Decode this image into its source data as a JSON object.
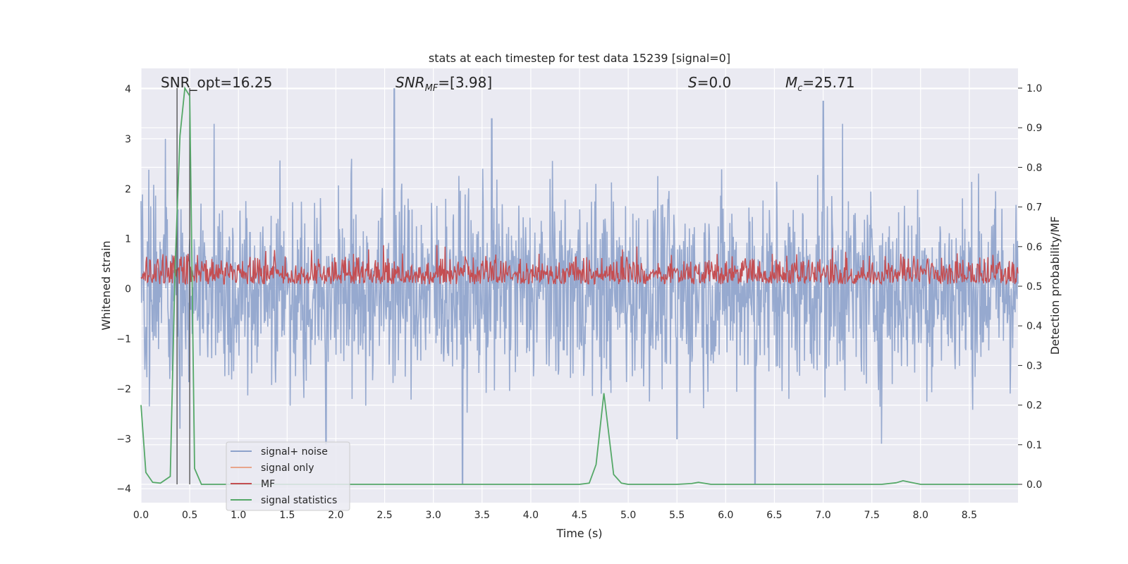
{
  "chart_data": {
    "type": "line",
    "title": "stats at each timestep for test data 15239 [signal=0]",
    "xlabel": "Time (s)",
    "ylabel_left": "Whitened strain",
    "ylabel_right": "Detection probability/MF",
    "xlim": [
      0.0,
      9.0
    ],
    "ylim_left": [
      -4.3,
      4.35
    ],
    "ylim_right": [
      -0.05,
      1.05
    ],
    "xticks": [
      "0.0",
      "0.5",
      "1.0",
      "1.5",
      "2.0",
      "2.5",
      "3.0",
      "3.5",
      "4.0",
      "4.5",
      "5.0",
      "5.5",
      "6.0",
      "6.5",
      "7.0",
      "7.5",
      "8.0",
      "8.5"
    ],
    "yticks_left": [
      "−4",
      "−3",
      "−2",
      "−1",
      "0",
      "1",
      "2",
      "3",
      "4"
    ],
    "yticks_right": [
      "0.0",
      "0.1",
      "0.2",
      "0.3",
      "0.4",
      "0.5",
      "0.6",
      "0.7",
      "0.8",
      "0.9",
      "1.0"
    ],
    "grid": true,
    "legend_position": "lower-left",
    "annotations": {
      "snr_opt": "SNR_opt=16.25",
      "snr_mf_main": "SNR",
      "snr_mf_sub": "MF",
      "snr_mf_value": "=[3.98]",
      "s_main": "S",
      "s_value": "=0.0",
      "mc_main": "M",
      "mc_sub": "c",
      "mc_value": "=25.71"
    },
    "vertical_lines": [
      0.37,
      0.5
    ],
    "series": [
      {
        "name": "signal+ noise",
        "color": "#8da2cb",
        "axis": "left",
        "description": "whitened strain noise, values mostly within ±2.5 around 0",
        "envelope": {
          "x": [
            0.0,
            9.0
          ],
          "upper_typical": 2.0,
          "lower_typical": -2.0,
          "peaks_upper": [
            [
              0.25,
              3.0
            ],
            [
              0.75,
              3.3
            ],
            [
              2.6,
              4.0
            ],
            [
              3.3,
              3.25
            ],
            [
              3.6,
              3.4
            ],
            [
              7.0,
              3.75
            ],
            [
              7.2,
              3.3
            ]
          ],
          "peaks_lower": [
            [
              0.4,
              -2.8
            ],
            [
              1.9,
              -3.1
            ],
            [
              3.3,
              -3.9
            ],
            [
              5.5,
              -3.0
            ],
            [
              6.3,
              -3.9
            ],
            [
              7.6,
              -3.1
            ]
          ]
        }
      },
      {
        "name": "signal only",
        "color": "#e8a58b",
        "axis": "left",
        "values": []
      },
      {
        "name": "MF",
        "color": "#c44e52",
        "axis": "right",
        "description": "matched filter output oscillating between ~0.5 and ~0.6",
        "range": [
          0.5,
          0.62
        ]
      },
      {
        "name": "signal statistics",
        "color": "#55a868",
        "axis": "right",
        "x": [
          0.0,
          0.05,
          0.12,
          0.2,
          0.3,
          0.35,
          0.4,
          0.45,
          0.5,
          0.55,
          0.62,
          0.7,
          1.0,
          2.0,
          3.0,
          4.0,
          4.5,
          4.6,
          4.67,
          4.75,
          4.85,
          4.93,
          5.0,
          5.1,
          5.5,
          5.65,
          5.72,
          5.85,
          6.5,
          7.0,
          7.6,
          7.75,
          7.82,
          7.9,
          8.0,
          8.5,
          9.0
        ],
        "y": [
          0.2,
          0.03,
          0.005,
          0.003,
          0.02,
          0.55,
          0.88,
          1.0,
          0.98,
          0.04,
          0.0,
          0.0,
          0.0,
          0.0,
          0.0,
          0.0,
          0.0,
          0.003,
          0.05,
          0.23,
          0.025,
          0.003,
          0.0,
          0.0,
          0.0,
          0.002,
          0.005,
          0.0,
          0.0,
          0.0,
          0.0,
          0.004,
          0.009,
          0.005,
          0.0,
          0.0,
          0.0
        ]
      }
    ]
  }
}
